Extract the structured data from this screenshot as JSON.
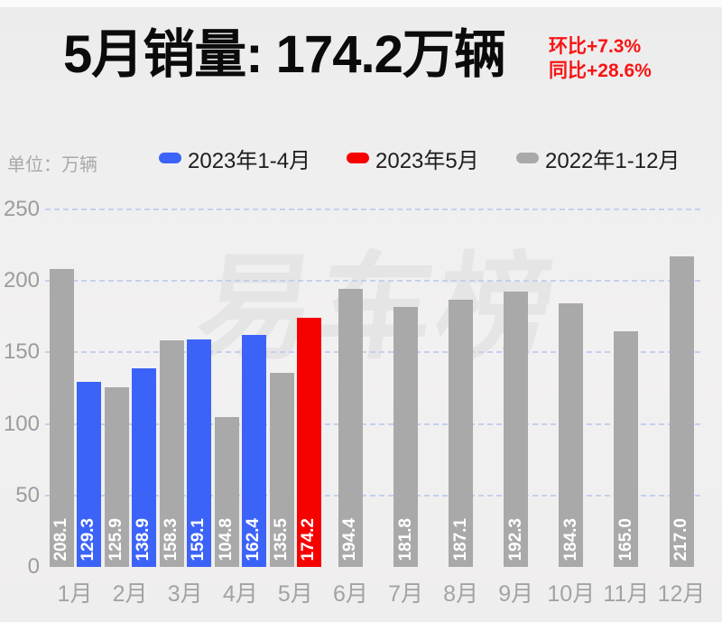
{
  "header": {
    "title": "5月销量: 174.2万辆",
    "mom_change": "环比+7.3%",
    "yoy_change": "同比+28.6%"
  },
  "unit_label": "单位：万辆",
  "watermark": "易车榜",
  "legend": [
    {
      "label": "2023年1-4月",
      "color": "#3C63F8"
    },
    {
      "label": "2023年5月",
      "color": "#F70000"
    },
    {
      "label": "2022年1-12月",
      "color": "#A9A9A9"
    }
  ],
  "colors": {
    "background": "#EFEFEF",
    "gridline": "#C5CFEF",
    "axis_text": "#A3A3A3",
    "bar_value_text": "#FFFFFF",
    "title_text": "#0B0B0B",
    "annotation_text": "#F81414",
    "watermark_text": "#E6E5E5"
  },
  "chart_data": {
    "type": "bar",
    "title": "5月销量: 174.2万辆",
    "ylabel": "万辆",
    "categories": [
      "1月",
      "2月",
      "3月",
      "4月",
      "5月",
      "6月",
      "7月",
      "8月",
      "9月",
      "10月",
      "11月",
      "12月"
    ],
    "series": [
      {
        "name": "2022年1-12月",
        "color": "#A9A9A9",
        "values": [
          208.1,
          125.9,
          158.3,
          104.8,
          135.5,
          194.4,
          181.8,
          187.1,
          192.3,
          184.3,
          165.0,
          217.0
        ]
      },
      {
        "name": "2023年1-4月",
        "color": "#3C63F8",
        "values": [
          129.3,
          138.9,
          159.1,
          162.4,
          null,
          null,
          null,
          null,
          null,
          null,
          null,
          null
        ]
      },
      {
        "name": "2023年5月",
        "color": "#F70000",
        "values": [
          null,
          null,
          null,
          null,
          174.2,
          null,
          null,
          null,
          null,
          null,
          null,
          null
        ]
      }
    ],
    "ylim": [
      0,
      250
    ],
    "yticks": [
      0,
      50,
      100,
      150,
      200,
      250
    ],
    "grid": "dashed-horizontal",
    "legend_position": "top",
    "value_labels": "rotated-vertical-inside-bar-bottom"
  }
}
